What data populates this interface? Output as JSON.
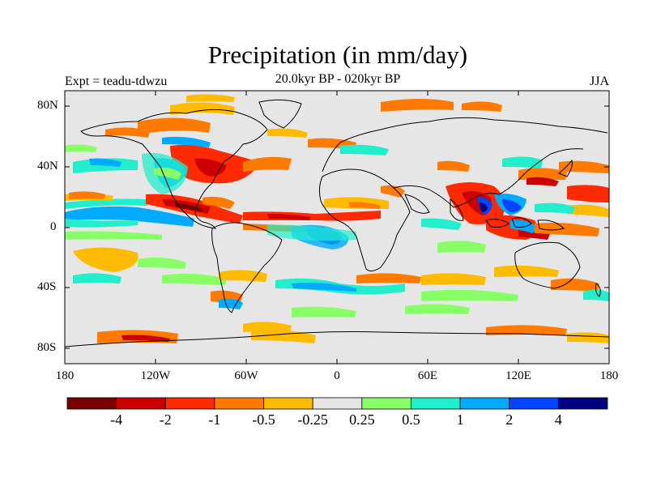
{
  "title": "Precipitation (in mm/day)",
  "subtitle": "20.0kyr BP - 020kyr BP",
  "left_label": "Expt = teadu-tdwzu",
  "right_label": "JJA",
  "lat_labels": [
    "80N",
    "40N",
    "0",
    "40S",
    "80S"
  ],
  "lon_labels": [
    "180",
    "120W",
    "60W",
    "0",
    "60E",
    "120E",
    "180"
  ],
  "colorbar": {
    "labels": [
      "-4",
      "-2",
      "-1",
      "-0.5",
      "-0.25",
      "0.25",
      "0.5",
      "1",
      "2",
      "4"
    ],
    "colors": [
      "#7a0000",
      "#cc0000",
      "#ff2a00",
      "#ff7a00",
      "#ffbb00",
      "#e6e6e6",
      "#88ff66",
      "#22eecc",
      "#00aaff",
      "#0044ff",
      "#000080"
    ]
  },
  "colors": {
    "map_background": "#e6e6e6",
    "coastline": "#000000"
  }
}
